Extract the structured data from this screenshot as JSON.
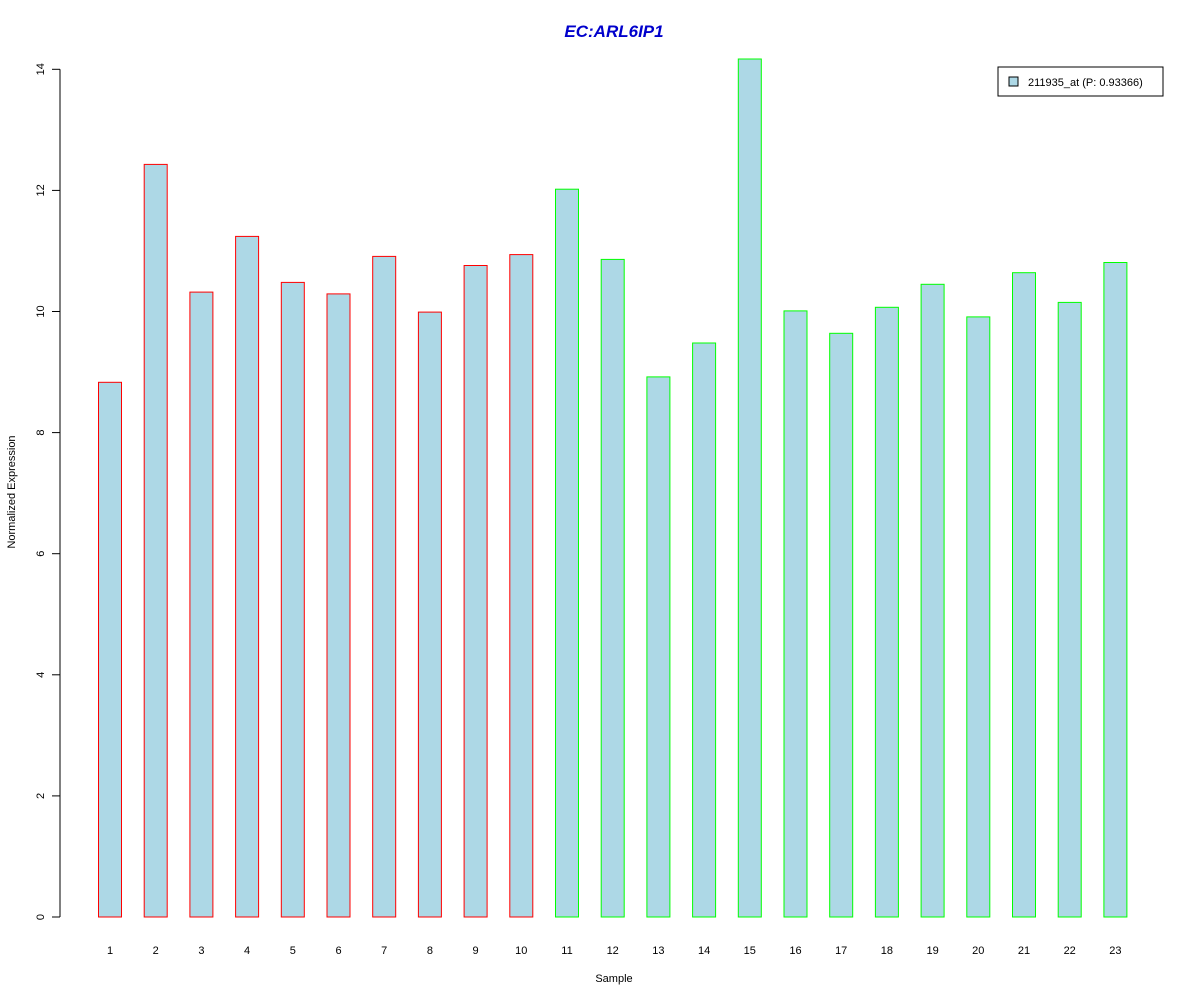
{
  "chart_data": {
    "type": "bar",
    "title": "EC:ARL6IP1",
    "xlabel": "Sample",
    "ylabel": "Normalized Expression",
    "categories": [
      "1",
      "2",
      "3",
      "4",
      "5",
      "6",
      "7",
      "8",
      "9",
      "10",
      "11",
      "12",
      "13",
      "14",
      "15",
      "16",
      "17",
      "18",
      "19",
      "20",
      "21",
      "22",
      "23"
    ],
    "series": [
      {
        "name": "211935_at (P: 0.93366)",
        "values": [
          8.83,
          12.43,
          10.32,
          11.24,
          10.48,
          10.29,
          10.91,
          9.99,
          10.76,
          10.94,
          12.02,
          10.86,
          8.92,
          9.48,
          14.17,
          10.01,
          9.64,
          10.07,
          10.45,
          9.91,
          10.64,
          10.15,
          10.81
        ]
      }
    ],
    "groups": [
      {
        "samples": [
          1,
          10
        ],
        "border_color": "#ff0000"
      },
      {
        "samples": [
          11,
          23
        ],
        "border_color": "#00ff00"
      }
    ],
    "ylim": [
      0,
      14.17
    ],
    "yticks": [
      0,
      2,
      4,
      6,
      8,
      10,
      12,
      14
    ],
    "bar_fill": "#add8e6",
    "title_color": "#0000cc",
    "grid": false,
    "legend_position": "top-right"
  }
}
